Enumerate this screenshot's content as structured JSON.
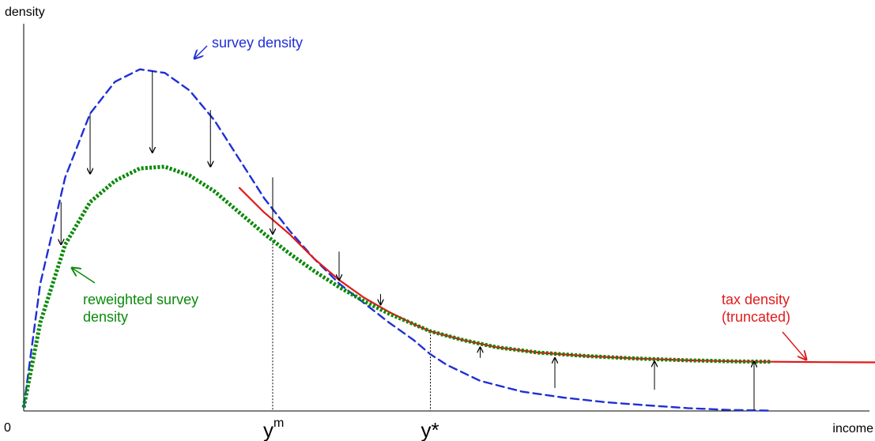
{
  "chart_data": {
    "type": "line",
    "title": "",
    "xlabel": "income",
    "ylabel": "density",
    "origin_label": "0",
    "xlim": [
      0,
      1
    ],
    "ylim": [
      0,
      1
    ],
    "grid": false,
    "x_markers": [
      {
        "label": "y",
        "superscript": "m",
        "x": 0.3
      },
      {
        "label": "y*",
        "superscript": "",
        "x": 0.49
      }
    ],
    "series": [
      {
        "name": "survey density",
        "color": "#1f2fd6",
        "style": "dashed",
        "points": [
          [
            0.0,
            0.01
          ],
          [
            0.02,
            0.36
          ],
          [
            0.05,
            0.66
          ],
          [
            0.08,
            0.84
          ],
          [
            0.11,
            0.93
          ],
          [
            0.14,
            0.965
          ],
          [
            0.17,
            0.955
          ],
          [
            0.2,
            0.905
          ],
          [
            0.23,
            0.82
          ],
          [
            0.26,
            0.71
          ],
          [
            0.29,
            0.6
          ],
          [
            0.32,
            0.51
          ],
          [
            0.35,
            0.43
          ],
          [
            0.38,
            0.36
          ],
          [
            0.41,
            0.305
          ],
          [
            0.44,
            0.25
          ],
          [
            0.47,
            0.2
          ],
          [
            0.49,
            0.16
          ],
          [
            0.51,
            0.13
          ],
          [
            0.55,
            0.085
          ],
          [
            0.6,
            0.055
          ],
          [
            0.65,
            0.038
          ],
          [
            0.7,
            0.025
          ],
          [
            0.75,
            0.016
          ],
          [
            0.8,
            0.008
          ],
          [
            0.85,
            0.003
          ],
          [
            0.9,
            0.001
          ]
        ]
      },
      {
        "name": "reweighted survey density",
        "color": "#0a8a0a",
        "style": "dotted",
        "points": [
          [
            0.0,
            0.01
          ],
          [
            0.02,
            0.25
          ],
          [
            0.05,
            0.47
          ],
          [
            0.08,
            0.59
          ],
          [
            0.11,
            0.65
          ],
          [
            0.14,
            0.685
          ],
          [
            0.17,
            0.69
          ],
          [
            0.2,
            0.665
          ],
          [
            0.23,
            0.62
          ],
          [
            0.26,
            0.56
          ],
          [
            0.29,
            0.5
          ],
          [
            0.32,
            0.445
          ],
          [
            0.35,
            0.395
          ],
          [
            0.38,
            0.35
          ],
          [
            0.41,
            0.31
          ],
          [
            0.44,
            0.275
          ],
          [
            0.47,
            0.245
          ],
          [
            0.49,
            0.225
          ],
          [
            0.53,
            0.2
          ],
          [
            0.57,
            0.18
          ],
          [
            0.62,
            0.165
          ],
          [
            0.68,
            0.155
          ],
          [
            0.74,
            0.148
          ],
          [
            0.8,
            0.143
          ],
          [
            0.86,
            0.14
          ],
          [
            0.9,
            0.139
          ]
        ]
      },
      {
        "name": "tax density (truncated)",
        "color": "#e01b1b",
        "style": "solid",
        "points": [
          [
            0.26,
            0.63
          ],
          [
            0.29,
            0.56
          ],
          [
            0.32,
            0.5
          ],
          [
            0.35,
            0.43
          ],
          [
            0.38,
            0.37
          ],
          [
            0.41,
            0.32
          ],
          [
            0.44,
            0.28
          ],
          [
            0.47,
            0.245
          ],
          [
            0.49,
            0.225
          ],
          [
            0.53,
            0.2
          ],
          [
            0.57,
            0.18
          ],
          [
            0.62,
            0.165
          ],
          [
            0.68,
            0.155
          ],
          [
            0.74,
            0.148
          ],
          [
            0.8,
            0.143
          ],
          [
            0.86,
            0.14
          ],
          [
            0.9,
            0.139
          ],
          [
            0.96,
            0.138
          ],
          [
            1.04,
            0.137
          ]
        ]
      }
    ],
    "adjustment_arrows": [
      {
        "x": 0.045,
        "from": 0.59,
        "to": 0.47
      },
      {
        "x": 0.08,
        "from": 0.84,
        "to": 0.67
      },
      {
        "x": 0.155,
        "from": 0.96,
        "to": 0.73
      },
      {
        "x": 0.225,
        "from": 0.85,
        "to": 0.69
      },
      {
        "x": 0.3,
        "from": 0.66,
        "to": 0.5
      },
      {
        "x": 0.38,
        "from": 0.45,
        "to": 0.37
      },
      {
        "x": 0.43,
        "from": 0.33,
        "to": 0.3
      },
      {
        "x": 0.55,
        "from": 0.15,
        "to": 0.18
      },
      {
        "x": 0.64,
        "from": 0.065,
        "to": 0.15
      },
      {
        "x": 0.76,
        "from": 0.06,
        "to": 0.14
      },
      {
        "x": 0.88,
        "from": 0.001,
        "to": 0.139
      }
    ],
    "annotations": [
      {
        "lines": [
          "survey density"
        ],
        "color": "#1f2fd6"
      },
      {
        "lines": [
          "reweighted survey",
          "density"
        ],
        "color": "#0a8a0a"
      },
      {
        "lines": [
          "tax density",
          "(truncated)"
        ],
        "color": "#e01b1b"
      }
    ]
  }
}
